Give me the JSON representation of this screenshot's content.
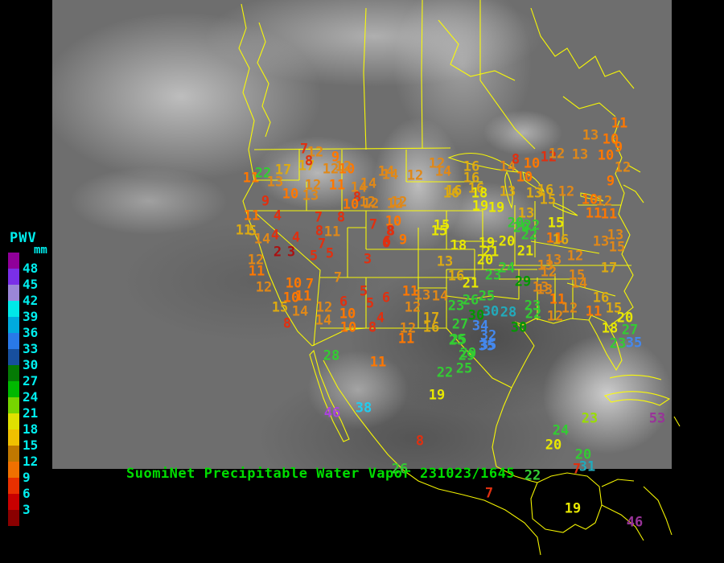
{
  "legend": {
    "title": "PWV",
    "unit": "mm",
    "values": [
      "48",
      "45",
      "42",
      "39",
      "36",
      "33",
      "30",
      "27",
      "24",
      "21",
      "18",
      "15",
      "12",
      "9",
      "6",
      "3"
    ],
    "colors": [
      "#90009a",
      "#7a2fe8",
      "#9b86d8",
      "#00e8e8",
      "#00aadd",
      "#2979e8",
      "#174f9e",
      "#057a05",
      "#00b800",
      "#77d400",
      "#e0e000",
      "#f0c000",
      "#c07800",
      "#f07000",
      "#e83000",
      "#c80000",
      "#8a0000"
    ]
  },
  "footer": {
    "title": "SuomiNet Precipitable Water Vapor",
    "timestamp": "231023/1645"
  },
  "palette": {
    "dred": "#aa1111",
    "red": "#e03010",
    "orange": "#ff7700",
    "dorange": "#e08818",
    "gold": "#ddaa11",
    "yellow": "#e8e800",
    "ygreen": "#99dd00",
    "green": "#33cc33",
    "dgreen": "#009900",
    "teal": "#22aabb",
    "blue": "#4488ee",
    "cyan": "#22ccee",
    "purple": "#aa44dd",
    "dpurple": "#993399"
  },
  "stations": [
    [
      312,
      222,
      "11",
      "orange"
    ],
    [
      327,
      216,
      "22",
      "green"
    ],
    [
      342,
      227,
      "13",
      "dorange"
    ],
    [
      352,
      212,
      "17",
      "gold"
    ],
    [
      381,
      207,
      "17",
      "gold"
    ],
    [
      378,
      186,
      "7",
      "red"
    ],
    [
      392,
      190,
      "12",
      "dorange"
    ],
    [
      384,
      201,
      "8",
      "red"
    ],
    [
      417,
      196,
      "9",
      "orange"
    ],
    [
      411,
      211,
      "12",
      "dorange"
    ],
    [
      431,
      211,
      "10",
      "orange"
    ],
    [
      480,
      214,
      "14",
      "dorange"
    ],
    [
      389,
      231,
      "12",
      "dorange"
    ],
    [
      419,
      231,
      "11",
      "orange"
    ],
    [
      446,
      234,
      "14",
      "dorange"
    ],
    [
      361,
      242,
      "10",
      "orange"
    ],
    [
      386,
      244,
      "13",
      "dorange"
    ],
    [
      444,
      246,
      "8",
      "red"
    ],
    [
      330,
      251,
      "9",
      "red"
    ],
    [
      436,
      255,
      "10",
      "orange"
    ],
    [
      457,
      252,
      "12",
      "dorange"
    ],
    [
      496,
      252,
      "12",
      "dorange"
    ],
    [
      313,
      269,
      "11",
      "orange"
    ],
    [
      345,
      269,
      "4",
      "red"
    ],
    [
      396,
      271,
      "7",
      "red"
    ],
    [
      424,
      271,
      "8",
      "red"
    ],
    [
      464,
      280,
      "7",
      "red"
    ],
    [
      489,
      276,
      "10",
      "orange"
    ],
    [
      427,
      208,
      "12",
      "dorange"
    ],
    [
      485,
      218,
      "14",
      "dorange"
    ],
    [
      516,
      219,
      "12",
      "dorange"
    ],
    [
      543,
      204,
      "12",
      "dorange"
    ],
    [
      551,
      214,
      "14",
      "dorange"
    ],
    [
      458,
      229,
      "14",
      "dorange"
    ],
    [
      564,
      238,
      "16",
      "gold"
    ],
    [
      461,
      254,
      "12",
      "dorange"
    ],
    [
      491,
      254,
      "12",
      "dorange"
    ],
    [
      486,
      288,
      "8",
      "red"
    ],
    [
      481,
      301,
      "6",
      "red"
    ],
    [
      501,
      299,
      "9",
      "orange"
    ],
    [
      546,
      288,
      "15",
      "yellow"
    ],
    [
      570,
      306,
      "18",
      "yellow"
    ],
    [
      586,
      208,
      "16",
      "gold"
    ],
    [
      586,
      222,
      "16",
      "gold"
    ],
    [
      592,
      235,
      "16",
      "gold"
    ],
    [
      631,
      208,
      "14",
      "dorange"
    ],
    [
      641,
      199,
      "8",
      "red"
    ],
    [
      661,
      204,
      "10",
      "orange"
    ],
    [
      682,
      196,
      "12",
      "red"
    ],
    [
      692,
      192,
      "12",
      "dorange"
    ],
    [
      652,
      221,
      "10",
      "orange"
    ],
    [
      631,
      239,
      "13",
      "gold"
    ],
    [
      664,
      241,
      "13",
      "gold"
    ],
    [
      561,
      241,
      "16",
      "gold"
    ],
    [
      596,
      241,
      "18",
      "yellow"
    ],
    [
      597,
      257,
      "19",
      "yellow"
    ],
    [
      617,
      259,
      "19",
      "yellow"
    ],
    [
      681,
      249,
      "15",
      "gold"
    ],
    [
      678,
      237,
      "16",
      "gold"
    ],
    [
      654,
      266,
      "13",
      "gold"
    ],
    [
      641,
      278,
      "20",
      "green"
    ],
    [
      661,
      281,
      "22",
      "green"
    ],
    [
      691,
      278,
      "15",
      "yellow"
    ],
    [
      549,
      281,
      "15",
      "yellow"
    ],
    [
      770,
      154,
      "11",
      "orange"
    ],
    [
      734,
      169,
      "13",
      "dorange"
    ],
    [
      759,
      174,
      "10",
      "orange"
    ],
    [
      769,
      184,
      "9",
      "orange"
    ],
    [
      721,
      193,
      "13",
      "dorange"
    ],
    [
      753,
      194,
      "10",
      "orange"
    ],
    [
      774,
      209,
      "12",
      "dorange"
    ],
    [
      759,
      226,
      "9",
      "orange"
    ],
    [
      704,
      239,
      "12",
      "dorange"
    ],
    [
      733,
      249,
      "10",
      "orange"
    ],
    [
      751,
      251,
      "12",
      "dorange"
    ],
    [
      738,
      266,
      "11",
      "orange"
    ],
    [
      757,
      267,
      "11",
      "orange"
    ],
    [
      605,
      303,
      "19",
      "yellow"
    ],
    [
      630,
      301,
      "20",
      "yellow"
    ],
    [
      648,
      284,
      "20",
      "green"
    ],
    [
      658,
      293,
      "22",
      "green"
    ],
    [
      653,
      313,
      "21",
      "yellow"
    ],
    [
      610,
      314,
      "21",
      "yellow"
    ],
    [
      603,
      324,
      "20",
      "yellow"
    ],
    [
      553,
      326,
      "13",
      "gold"
    ],
    [
      630,
      334,
      "24",
      "green"
    ],
    [
      613,
      343,
      "23",
      "green"
    ],
    [
      567,
      344,
      "16",
      "gold"
    ],
    [
      585,
      353,
      "21",
      "yellow"
    ],
    [
      650,
      351,
      "29",
      "dgreen"
    ],
    [
      678,
      331,
      "13",
      "dorange"
    ],
    [
      682,
      339,
      "12",
      "dorange"
    ],
    [
      677,
      361,
      "13",
      "dorange"
    ],
    [
      689,
      297,
      "11",
      "orange"
    ],
    [
      697,
      299,
      "16",
      "gold"
    ],
    [
      303,
      287,
      "11",
      "gold"
    ],
    [
      314,
      288,
      "5",
      "gold"
    ],
    [
      342,
      293,
      "4",
      "red"
    ],
    [
      326,
      298,
      "14",
      "dorange"
    ],
    [
      368,
      296,
      "4",
      "red"
    ],
    [
      397,
      288,
      "8",
      "red"
    ],
    [
      413,
      289,
      "11",
      "dorange"
    ],
    [
      345,
      314,
      "2",
      "dred"
    ],
    [
      362,
      314,
      "3",
      "dred"
    ],
    [
      400,
      304,
      "7",
      "red"
    ],
    [
      390,
      319,
      "5",
      "red"
    ],
    [
      410,
      316,
      "5",
      "red"
    ],
    [
      485,
      288,
      "8",
      "red"
    ],
    [
      480,
      303,
      "6",
      "red"
    ],
    [
      457,
      323,
      "3",
      "red"
    ],
    [
      318,
      324,
      "12",
      "dorange"
    ],
    [
      319,
      338,
      "11",
      "orange"
    ],
    [
      365,
      353,
      "10",
      "orange"
    ],
    [
      385,
      354,
      "7",
      "orange"
    ],
    [
      420,
      346,
      "7",
      "dorange"
    ],
    [
      328,
      358,
      "12",
      "dorange"
    ],
    [
      362,
      371,
      "10",
      "orange"
    ],
    [
      377,
      369,
      "11",
      "orange"
    ],
    [
      452,
      363,
      "5",
      "red"
    ],
    [
      460,
      378,
      "5",
      "red"
    ],
    [
      480,
      371,
      "6",
      "red"
    ],
    [
      427,
      376,
      "6",
      "red"
    ],
    [
      348,
      383,
      "15",
      "gold"
    ],
    [
      403,
      383,
      "12",
      "dorange"
    ],
    [
      373,
      388,
      "14",
      "dorange"
    ],
    [
      432,
      391,
      "10",
      "orange"
    ],
    [
      357,
      403,
      "8",
      "red"
    ],
    [
      402,
      399,
      "14",
      "dorange"
    ],
    [
      473,
      396,
      "4",
      "red"
    ],
    [
      433,
      408,
      "10",
      "orange"
    ],
    [
      463,
      408,
      "8",
      "red"
    ],
    [
      510,
      363,
      "11",
      "orange"
    ],
    [
      525,
      368,
      "13",
      "dorange"
    ],
    [
      547,
      369,
      "14",
      "dorange"
    ],
    [
      513,
      383,
      "12",
      "dorange"
    ],
    [
      536,
      396,
      "17",
      "gold"
    ],
    [
      536,
      408,
      "16",
      "gold"
    ],
    [
      507,
      409,
      "12",
      "dorange"
    ],
    [
      585,
      374,
      "26",
      "green"
    ],
    [
      605,
      369,
      "25",
      "green"
    ],
    [
      567,
      381,
      "23",
      "green"
    ],
    [
      592,
      393,
      "30",
      "dgreen"
    ],
    [
      610,
      388,
      "30",
      "teal"
    ],
    [
      632,
      389,
      "28",
      "teal"
    ],
    [
      662,
      381,
      "23",
      "green"
    ],
    [
      663,
      391,
      "22",
      "green"
    ],
    [
      572,
      404,
      "27",
      "green"
    ],
    [
      597,
      406,
      "34",
      "blue"
    ],
    [
      645,
      408,
      "30",
      "dgreen"
    ],
    [
      607,
      418,
      "32",
      "blue"
    ],
    [
      570,
      423,
      "25",
      "green"
    ],
    [
      605,
      431,
      "35",
      "blue"
    ],
    [
      582,
      440,
      "29",
      "green"
    ],
    [
      747,
      301,
      "13",
      "dorange"
    ],
    [
      765,
      293,
      "13",
      "dorange"
    ],
    [
      767,
      308,
      "15",
      "dorange"
    ],
    [
      715,
      319,
      "12",
      "dorange"
    ],
    [
      688,
      324,
      "13",
      "dorange"
    ],
    [
      757,
      334,
      "17",
      "gold"
    ],
    [
      717,
      343,
      "15",
      "dorange"
    ],
    [
      720,
      353,
      "14",
      "dorange"
    ],
    [
      693,
      373,
      "11",
      "orange"
    ],
    [
      708,
      384,
      "12",
      "dorange"
    ],
    [
      738,
      388,
      "11",
      "orange"
    ],
    [
      690,
      394,
      "12",
      "dorange"
    ],
    [
      747,
      371,
      "16",
      "gold"
    ],
    [
      763,
      384,
      "15",
      "gold"
    ],
    [
      777,
      396,
      "20",
      "yellow"
    ],
    [
      758,
      409,
      "18",
      "yellow"
    ],
    [
      783,
      411,
      "27",
      "green"
    ],
    [
      768,
      428,
      "23",
      "green"
    ],
    [
      788,
      427,
      "35",
      "blue"
    ],
    [
      672,
      358,
      "13",
      "dorange"
    ],
    [
      412,
      443,
      "28",
      "green"
    ],
    [
      470,
      451,
      "11",
      "orange"
    ],
    [
      505,
      422,
      "11",
      "orange"
    ],
    [
      568,
      424,
      "25",
      "green"
    ],
    [
      607,
      430,
      "35",
      "blue"
    ],
    [
      580,
      443,
      "29",
      "green"
    ],
    [
      553,
      464,
      "22",
      "green"
    ],
    [
      577,
      459,
      "25",
      "green"
    ],
    [
      543,
      492,
      "19",
      "yellow"
    ],
    [
      452,
      508,
      "38",
      "cyan"
    ],
    [
      413,
      514,
      "46",
      "purple"
    ],
    [
      522,
      549,
      "8",
      "red"
    ],
    [
      817,
      521,
      "53",
      "dpurple"
    ],
    [
      733,
      521,
      "23",
      "ygreen"
    ],
    [
      697,
      536,
      "24",
      "green"
    ],
    [
      688,
      554,
      "20",
      "yellow"
    ],
    [
      725,
      566,
      "20",
      "green"
    ],
    [
      730,
      581,
      "31",
      "teal"
    ],
    [
      662,
      592,
      "22",
      "green"
    ],
    [
      608,
      614,
      "7",
      "red"
    ],
    [
      712,
      633,
      "19",
      "yellow"
    ],
    [
      789,
      650,
      "46",
      "dpurple"
    ],
    [
      497,
      584,
      "26",
      "green"
    ],
    [
      717,
      584,
      "7",
      "red"
    ]
  ]
}
